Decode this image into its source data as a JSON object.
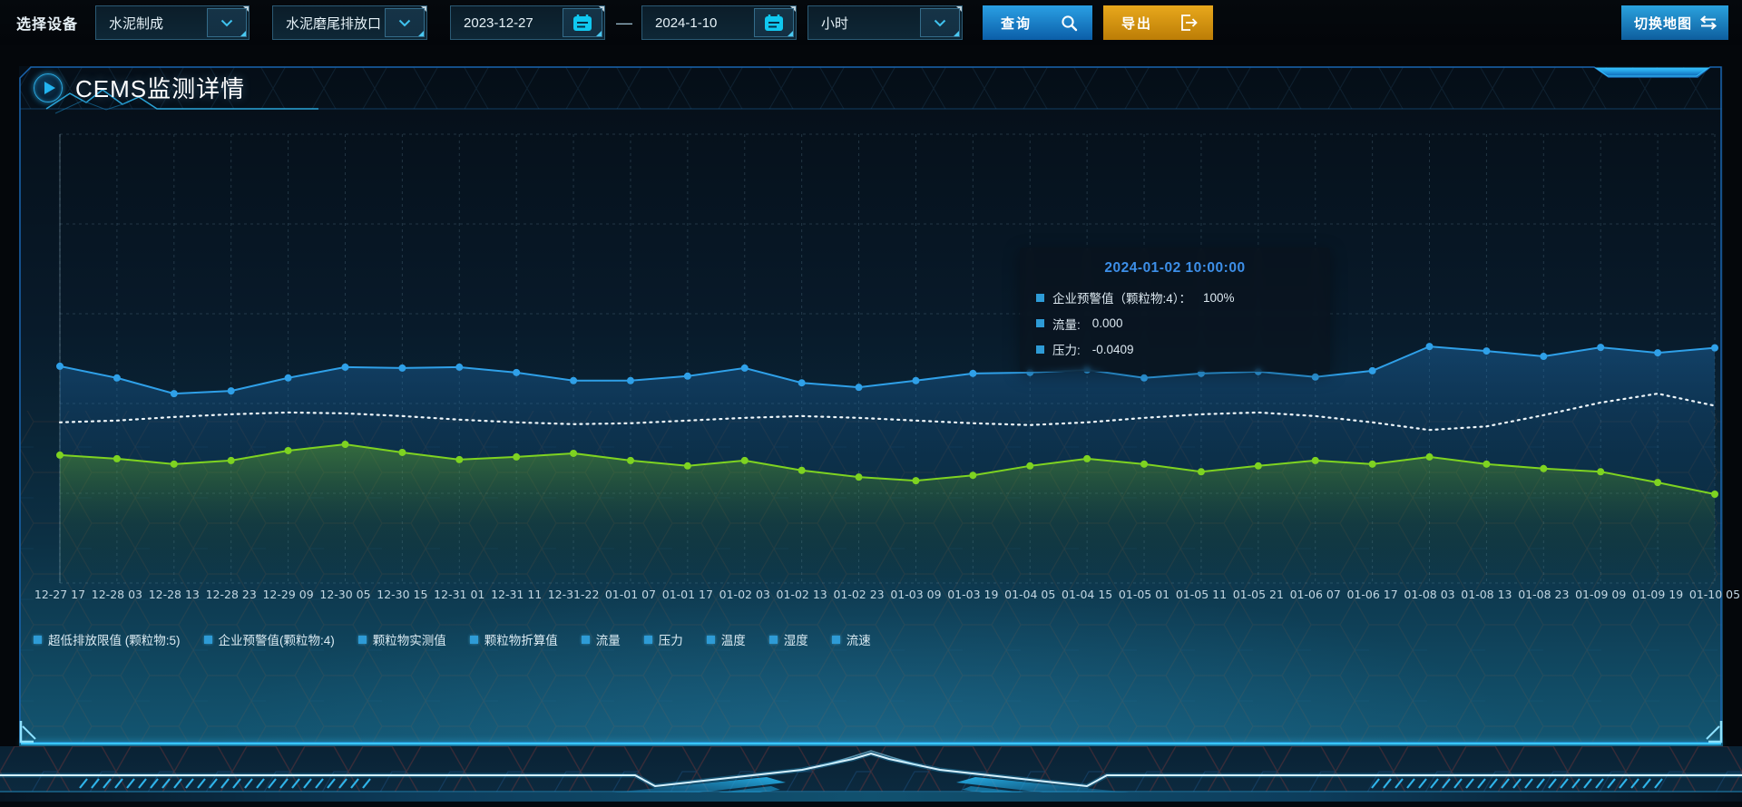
{
  "toolbar": {
    "device_label": "选择设备",
    "select_line": "水泥制成",
    "select_outlet": "水泥磨尾排放口",
    "date_from": "2023-12-27",
    "date_separator": "—",
    "date_to": "2024-1-10",
    "select_interval": "小时",
    "query_label": "查询",
    "export_label": "导出",
    "switch_map_label": "切换地图"
  },
  "panel": {
    "title": "CEMS监测详情"
  },
  "tooltip": {
    "title": "2024-01-02 10:00:00",
    "rows": [
      {
        "label": "企业预警值（颗粒物:4）：",
        "value": "100%"
      },
      {
        "label": "流量:",
        "value": "0.000"
      },
      {
        "label": "压力:",
        "value": "-0.0409"
      }
    ]
  },
  "legend": {
    "items": [
      "超低排放限值 (颗粒物:5)",
      "企业预警值(颗粒物:4)",
      "颗粒物实测值",
      "颗粒物折算值",
      "流量",
      "压力",
      "温度",
      "湿度",
      "流速"
    ]
  },
  "chart_data": {
    "type": "line",
    "title": "CEMS监测详情",
    "xlabel": "",
    "ylabel": "",
    "note": "no y-axis tick labels visible; series values are estimated as percent of plot height from the bottom axis",
    "ylim": [
      0,
      100
    ],
    "grid": "dashed",
    "legend_position": "bottom",
    "categories": [
      "12-27 17",
      "12-28 03",
      "12-28 13",
      "12-28 23",
      "12-29 09",
      "12-30 05",
      "12-30 15",
      "12-31 01",
      "12-31 11",
      "12-31-22",
      "01-01 07",
      "01-01 17",
      "01-02 03",
      "01-02 13",
      "01-02 23",
      "01-03 09",
      "01-03 19",
      "01-04 05",
      "01-04 15",
      "01-05 01",
      "01-05 11",
      "01-05 21",
      "01-06 07",
      "01-06 17",
      "01-08 03",
      "01-08 13",
      "01-08 23",
      "01-09 09",
      "01-09 19",
      "01-10 05"
    ],
    "series": [
      {
        "name": "企业预警值(颗粒物:4)",
        "color": "#2fa0e8",
        "style": "solid",
        "markers": true,
        "area": "gBlue",
        "values": [
          48.3,
          45.7,
          42.2,
          42.8,
          45.7,
          48.1,
          47.9,
          48.1,
          46.9,
          45.1,
          45.1,
          46.1,
          47.9,
          44.6,
          43.6,
          45.1,
          46.7,
          46.9,
          47.5,
          45.7,
          46.7,
          47.1,
          45.9,
          47.3,
          52.7,
          51.7,
          50.5,
          52.5,
          51.3,
          52.4
        ]
      },
      {
        "name": "流量",
        "color": "#eef6fa",
        "style": "dotted",
        "markers": false,
        "area": null,
        "values": [
          35.8,
          36.2,
          37.0,
          37.6,
          38.0,
          37.8,
          37.2,
          36.4,
          35.8,
          35.4,
          35.6,
          36.2,
          36.8,
          37.2,
          36.8,
          36.2,
          35.6,
          35.2,
          35.8,
          36.8,
          37.6,
          38.0,
          37.2,
          35.8,
          34.1,
          34.9,
          37.4,
          40.2,
          42.2,
          39.5
        ]
      },
      {
        "name": "压力",
        "color": "#7ed321",
        "style": "solid",
        "markers": true,
        "area": "gGreen",
        "values": [
          28.5,
          27.7,
          26.5,
          27.3,
          29.5,
          30.9,
          29.1,
          27.5,
          28.1,
          28.9,
          27.3,
          26.1,
          27.3,
          25.1,
          23.6,
          22.8,
          24.0,
          26.1,
          27.7,
          26.5,
          24.8,
          26.1,
          27.3,
          26.5,
          28.1,
          26.5,
          25.5,
          24.8,
          22.4,
          19.8
        ]
      }
    ]
  },
  "colors": {
    "accent_cyan": "#35c2ff",
    "panel_border": "#1a64ae",
    "line_blue": "#2fa0e8",
    "line_white_dotted": "#eef6fa",
    "line_green": "#7ed321",
    "query_button": "#1287d8",
    "export_button": "#d8960e",
    "switch_map_button": "#1d86c6",
    "tooltip_title": "#3d8fe8",
    "legend_marker": "#2e9bd6",
    "calendar_icon": "#10c8f0"
  }
}
